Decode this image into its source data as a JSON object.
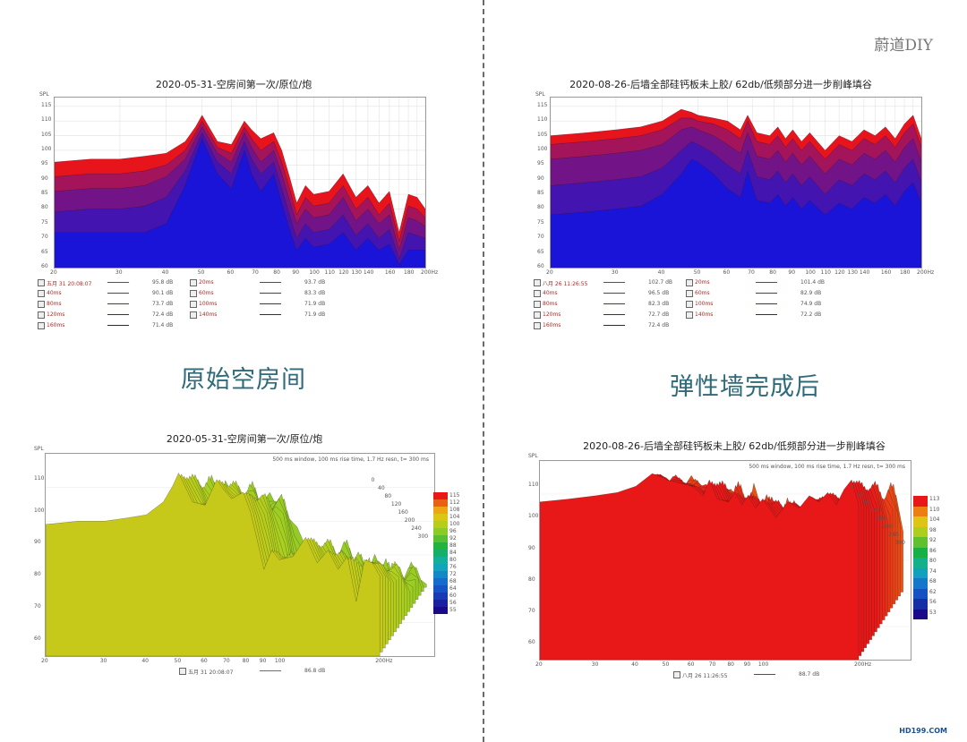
{
  "watermark": "蔚道DIY",
  "logo": "HD199.COM",
  "captions": {
    "left": "原始空房间",
    "right": "弹性墙完成后"
  },
  "colors": {
    "decay_front": "#1a14d8",
    "decay_back": "#e8141c",
    "caption": "#2e6a78"
  },
  "panels": {
    "tl": {
      "title": "2020-05-31-空房间第一次/原位/炮",
      "ylabel": "SPL",
      "yticks": [
        "115",
        "110",
        "105",
        "100",
        "95",
        "90",
        "85",
        "80",
        "75",
        "70",
        "65",
        "60"
      ],
      "xticks": [
        "20",
        "30",
        "40",
        "50",
        "60",
        "70",
        "80",
        "90",
        "100",
        "110",
        "120",
        "130",
        "140",
        "160",
        "180",
        "200Hz"
      ],
      "legend": [
        {
          "label": "五月 31 20:08:07",
          "value": "95.8 dB"
        },
        {
          "label": "20ms",
          "value": "93.7 dB"
        },
        {
          "label": "40ms",
          "value": "90.1 dB"
        },
        {
          "label": "60ms",
          "value": "83.3 dB"
        },
        {
          "label": "80ms",
          "value": "73.7 dB"
        },
        {
          "label": "100ms",
          "value": "71.9 dB"
        },
        {
          "label": "120ms",
          "value": "72.4 dB"
        },
        {
          "label": "140ms",
          "value": "71.9 dB"
        },
        {
          "label": "160ms",
          "value": "71.4 dB"
        }
      ]
    },
    "tr": {
      "title": "2020-08-26-后墙全部硅钙板未上胶/ 62db/低频部分进一步削峰填谷",
      "ylabel": "SPL",
      "yticks": [
        "115",
        "110",
        "105",
        "100",
        "95",
        "90",
        "85",
        "80",
        "75",
        "70",
        "65",
        "60"
      ],
      "xticks": [
        "20",
        "30",
        "40",
        "50",
        "60",
        "70",
        "80",
        "90",
        "100",
        "110",
        "120",
        "130",
        "140",
        "160",
        "180",
        "200Hz"
      ],
      "legend": [
        {
          "label": "八月 26 11:26:55",
          "value": "102.7 dB"
        },
        {
          "label": "20ms",
          "value": "101.4 dB"
        },
        {
          "label": "40ms",
          "value": "96.5 dB"
        },
        {
          "label": "60ms",
          "value": "82.9 dB"
        },
        {
          "label": "80ms",
          "value": "82.3 dB"
        },
        {
          "label": "100ms",
          "value": "74.9 dB"
        },
        {
          "label": "120ms",
          "value": "72.7 dB"
        },
        {
          "label": "140ms",
          "value": "72.2 dB"
        },
        {
          "label": "160ms",
          "value": "72.4 dB"
        }
      ]
    },
    "bl": {
      "title": "2020-05-31-空房间第一次/原位/炮",
      "ylabel": "SPL",
      "info": "500 ms window, 100 ms rise time, 1.7 Hz resn, t= 300 ms",
      "yticks": [
        "110",
        "100",
        "90",
        "80",
        "70",
        "60"
      ],
      "xticks": [
        "20",
        "30",
        "40",
        "50",
        "60",
        "70",
        "80",
        "90",
        "100",
        "200Hz"
      ],
      "ms_ticks": [
        "0",
        "40",
        "80",
        "120",
        "160",
        "200",
        "240",
        "300"
      ],
      "cbar_ticks": [
        "115",
        "112",
        "108",
        "104",
        "100",
        "96",
        "92",
        "88",
        "84",
        "80",
        "76",
        "72",
        "68",
        "64",
        "60",
        "56",
        "55"
      ],
      "legend": [
        {
          "label": "五月 31 20:08:07",
          "value": "86.8 dB"
        }
      ]
    },
    "br": {
      "title": "2020-08-26-后墙全部硅钙板未上胶/ 62db/低频部分进一步削峰填谷",
      "ylabel": "SPL",
      "info": "500 ms window, 100 ms rise time, 1.7 Hz resn, t= 300 ms",
      "yticks": [
        "110",
        "100",
        "90",
        "80",
        "70",
        "60"
      ],
      "xticks": [
        "20",
        "30",
        "40",
        "50",
        "60",
        "70",
        "80",
        "90",
        "100",
        "200Hz"
      ],
      "ms_ticks": [
        "0",
        "40",
        "80",
        "120",
        "160",
        "200",
        "240",
        "300"
      ],
      "cbar_ticks": [
        "113",
        "110",
        "104",
        "98",
        "92",
        "86",
        "80",
        "74",
        "68",
        "62",
        "56",
        "53"
      ],
      "legend": [
        {
          "label": "八月 26 11:26:55",
          "value": "88.7 dB"
        }
      ]
    }
  },
  "chart_data": [
    {
      "type": "area",
      "title": "2020-05-31-空房间第一次/原位/炮",
      "ylabel": "SPL",
      "xscale": "log",
      "xlim": [
        20,
        200
      ],
      "ylim": [
        60,
        118
      ],
      "x": [
        20,
        25,
        30,
        35,
        40,
        45,
        48,
        50,
        55,
        60,
        65,
        68,
        72,
        78,
        82,
        86,
        90,
        95,
        100,
        110,
        120,
        130,
        140,
        150,
        160,
        170,
        180,
        190,
        200
      ],
      "series": [
        {
          "name": "五月 31 20:08:07",
          "values": [
            96,
            97,
            97,
            98,
            99,
            103,
            108,
            112,
            103,
            102,
            110,
            107,
            104,
            106,
            100,
            91,
            82,
            88,
            85,
            86,
            92,
            84,
            88,
            82,
            86,
            72,
            85,
            84,
            80
          ]
        },
        {
          "name": "20ms",
          "values": [
            91,
            92,
            92,
            93,
            95,
            100,
            106,
            110,
            101,
            99,
            108,
            104,
            100,
            103,
            96,
            87,
            78,
            84,
            81,
            82,
            88,
            80,
            84,
            78,
            82,
            69,
            81,
            80,
            77
          ]
        },
        {
          "name": "40ms",
          "values": [
            86,
            87,
            87,
            88,
            91,
            97,
            104,
            108,
            99,
            96,
            106,
            101,
            96,
            100,
            92,
            83,
            75,
            80,
            77,
            78,
            84,
            76,
            80,
            75,
            78,
            66,
            77,
            76,
            74
          ]
        },
        {
          "name": "60ms",
          "values": [
            79,
            80,
            80,
            81,
            84,
            93,
            101,
            106,
            96,
            92,
            103,
            97,
            92,
            96,
            87,
            78,
            70,
            75,
            72,
            73,
            78,
            71,
            75,
            70,
            73,
            63,
            72,
            71,
            70
          ]
        },
        {
          "name": "80ms",
          "values": [
            72,
            72,
            72,
            72,
            75,
            88,
            98,
            104,
            92,
            87,
            100,
            92,
            86,
            92,
            82,
            73,
            66,
            70,
            67,
            68,
            72,
            66,
            70,
            66,
            68,
            61,
            66,
            66,
            66
          ]
        }
      ]
    },
    {
      "type": "area",
      "title": "2020-08-26-后墙全部硅钙板未上胶/ 62db/低频部分进一步削峰填谷",
      "ylabel": "SPL",
      "xscale": "log",
      "xlim": [
        20,
        200
      ],
      "ylim": [
        60,
        118
      ],
      "x": [
        20,
        25,
        30,
        35,
        40,
        45,
        48,
        50,
        55,
        60,
        65,
        68,
        72,
        78,
        82,
        86,
        90,
        95,
        100,
        110,
        120,
        130,
        140,
        150,
        160,
        170,
        180,
        190,
        200
      ],
      "series": [
        {
          "name": "八月 26 11:26:55",
          "values": [
            105,
            106,
            107,
            108,
            110,
            114,
            113,
            112,
            111,
            110,
            107,
            112,
            106,
            105,
            108,
            104,
            107,
            103,
            106,
            100,
            105,
            103,
            107,
            105,
            108,
            104,
            109,
            112,
            104
          ]
        },
        {
          "name": "20ms",
          "values": [
            102,
            103,
            104,
            105,
            107,
            111,
            111,
            110,
            109,
            107,
            104,
            110,
            103,
            102,
            105,
            101,
            104,
            100,
            103,
            97,
            102,
            100,
            104,
            102,
            105,
            101,
            106,
            109,
            101
          ]
        },
        {
          "name": "40ms",
          "values": [
            97,
            98,
            99,
            100,
            102,
            107,
            108,
            107,
            105,
            102,
            99,
            106,
            98,
            97,
            100,
            96,
            99,
            95,
            98,
            92,
            97,
            95,
            99,
            97,
            100,
            96,
            101,
            104,
            96
          ]
        },
        {
          "name": "60ms",
          "values": [
            88,
            89,
            90,
            91,
            94,
            100,
            103,
            102,
            99,
            95,
            92,
            100,
            91,
            90,
            93,
            89,
            92,
            88,
            91,
            85,
            90,
            88,
            92,
            90,
            93,
            89,
            94,
            97,
            89
          ]
        },
        {
          "name": "80ms",
          "values": [
            78,
            79,
            80,
            81,
            85,
            92,
            97,
            96,
            92,
            87,
            84,
            93,
            83,
            82,
            85,
            81,
            84,
            80,
            83,
            78,
            82,
            80,
            84,
            82,
            85,
            81,
            86,
            89,
            82
          ]
        }
      ]
    }
  ]
}
